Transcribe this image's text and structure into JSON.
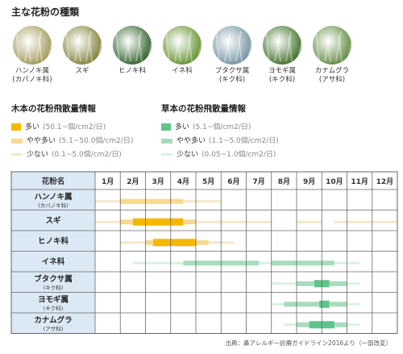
{
  "title": "主な花粉の種類",
  "plants": [
    {
      "name_line1": "ハンノキ属",
      "name_line2": "(カバノキ科)",
      "icon": "alder-catkin-photo",
      "color": "#a8a064"
    },
    {
      "name_line1": "スギ",
      "name_line2": "",
      "icon": "cedar-photo",
      "color": "#8a8a48"
    },
    {
      "name_line1": "ヒノキ科",
      "name_line2": "",
      "icon": "cypress-photo",
      "color": "#3f6e3a"
    },
    {
      "name_line1": "イネ科",
      "name_line2": "",
      "icon": "grass-photo",
      "color": "#6e9a3c"
    },
    {
      "name_line1": "ブタクサ属",
      "name_line2": "(キク科)",
      "icon": "ragweed-photo",
      "color": "#7c9aa8"
    },
    {
      "name_line1": "ヨモギ属",
      "name_line2": "(キク科)",
      "icon": "mugwort-photo",
      "color": "#4c7a36"
    },
    {
      "name_line1": "カナムグラ",
      "name_line2": "(アサ科)",
      "icon": "hop-photo",
      "color": "#6c9450"
    }
  ],
  "legend_tree": {
    "title": "木本の花粉飛散量情報",
    "items": [
      {
        "label": "多い",
        "range": "(50.1~個/cm2/日)",
        "color": "#f5b800",
        "level": 3
      },
      {
        "label": "やや多い",
        "range": "(5.1~50.0個/cm2/日)",
        "color": "#f7d98f",
        "level": 2
      },
      {
        "label": "少ない",
        "range": "(0.1~5.0個/cm2/日)",
        "color": "#f5e6c8",
        "level": 1
      }
    ]
  },
  "legend_herb": {
    "title": "草本の花粉飛散量情報",
    "items": [
      {
        "label": "多い",
        "range": "(5.1~個/cm2/日)",
        "color": "#5ec48a",
        "level": 3
      },
      {
        "label": "やや多い",
        "range": "(1.1~5.0個/cm2/日)",
        "color": "#a7dcbc",
        "level": 2
      },
      {
        "label": "少ない",
        "range": "(0.05~1.0個/cm2/日)",
        "color": "#d9f0e1",
        "level": 1
      }
    ]
  },
  "chart_data": {
    "type": "heatmap",
    "header_label": "花粉名",
    "months": [
      "1月",
      "2月",
      "3月",
      "4月",
      "5月",
      "6月",
      "7月",
      "8月",
      "9月",
      "10月",
      "11月",
      "12月"
    ],
    "rows": [
      {
        "name": "ハンノキ属",
        "sub": "(カバノキ科)",
        "kind": "tree",
        "segments": [
          [
            0.0,
            1.0,
            1
          ],
          [
            1.0,
            2.0,
            2
          ],
          [
            2.0,
            3.5,
            2
          ],
          [
            3.5,
            4.5,
            1
          ],
          [
            4.5,
            5.0,
            1
          ]
        ]
      },
      {
        "name": "スギ",
        "sub": "",
        "kind": "tree",
        "segments": [
          [
            0.0,
            1.0,
            1
          ],
          [
            1.0,
            1.5,
            2
          ],
          [
            1.5,
            3.5,
            3
          ],
          [
            3.5,
            4.0,
            2
          ],
          [
            4.0,
            5.5,
            1
          ],
          [
            5.5,
            6.5,
            1
          ],
          [
            6.5,
            7.0,
            1
          ],
          [
            8.0,
            9.0,
            1
          ],
          [
            9.5,
            12.0,
            1
          ]
        ]
      },
      {
        "name": "ヒノキ科",
        "sub": "",
        "kind": "tree",
        "segments": [
          [
            1.0,
            2.0,
            1
          ],
          [
            2.0,
            2.3,
            2
          ],
          [
            2.3,
            4.0,
            3
          ],
          [
            4.0,
            4.5,
            2
          ],
          [
            4.5,
            5.5,
            1
          ]
        ]
      },
      {
        "name": "イネ科",
        "sub": "",
        "kind": "herb",
        "segments": [
          [
            1.5,
            3.0,
            1
          ],
          [
            3.0,
            3.5,
            1
          ],
          [
            3.5,
            4.0,
            2
          ],
          [
            4.0,
            6.0,
            2
          ],
          [
            6.0,
            6.5,
            2
          ],
          [
            6.5,
            7.0,
            1
          ],
          [
            7.0,
            8.0,
            2
          ],
          [
            8.0,
            9.5,
            2
          ],
          [
            9.5,
            10.5,
            1
          ]
        ]
      },
      {
        "name": "ブタクサ属",
        "sub": "(キク科)",
        "kind": "herb",
        "segments": [
          [
            7.0,
            7.5,
            1
          ],
          [
            7.5,
            8.0,
            1
          ],
          [
            8.0,
            8.7,
            2
          ],
          [
            8.7,
            9.3,
            3
          ],
          [
            9.3,
            10.0,
            2
          ],
          [
            10.0,
            10.5,
            1
          ]
        ]
      },
      {
        "name": "ヨモギ属",
        "sub": "(キク科)",
        "kind": "herb",
        "segments": [
          [
            7.0,
            7.5,
            1
          ],
          [
            7.5,
            8.5,
            2
          ],
          [
            8.5,
            8.9,
            2
          ],
          [
            8.9,
            9.3,
            3
          ],
          [
            9.3,
            10.0,
            2
          ],
          [
            10.0,
            10.5,
            1
          ]
        ]
      },
      {
        "name": "カナムグラ",
        "sub": "(アサ科)",
        "kind": "herb",
        "segments": [
          [
            7.5,
            8.0,
            1
          ],
          [
            8.0,
            8.5,
            2
          ],
          [
            8.5,
            9.5,
            3
          ],
          [
            9.5,
            10.0,
            2
          ],
          [
            10.0,
            10.5,
            1
          ]
        ]
      }
    ]
  },
  "source": "出典：鼻アレルギー診療ガイドライン2016より（一部改変）"
}
